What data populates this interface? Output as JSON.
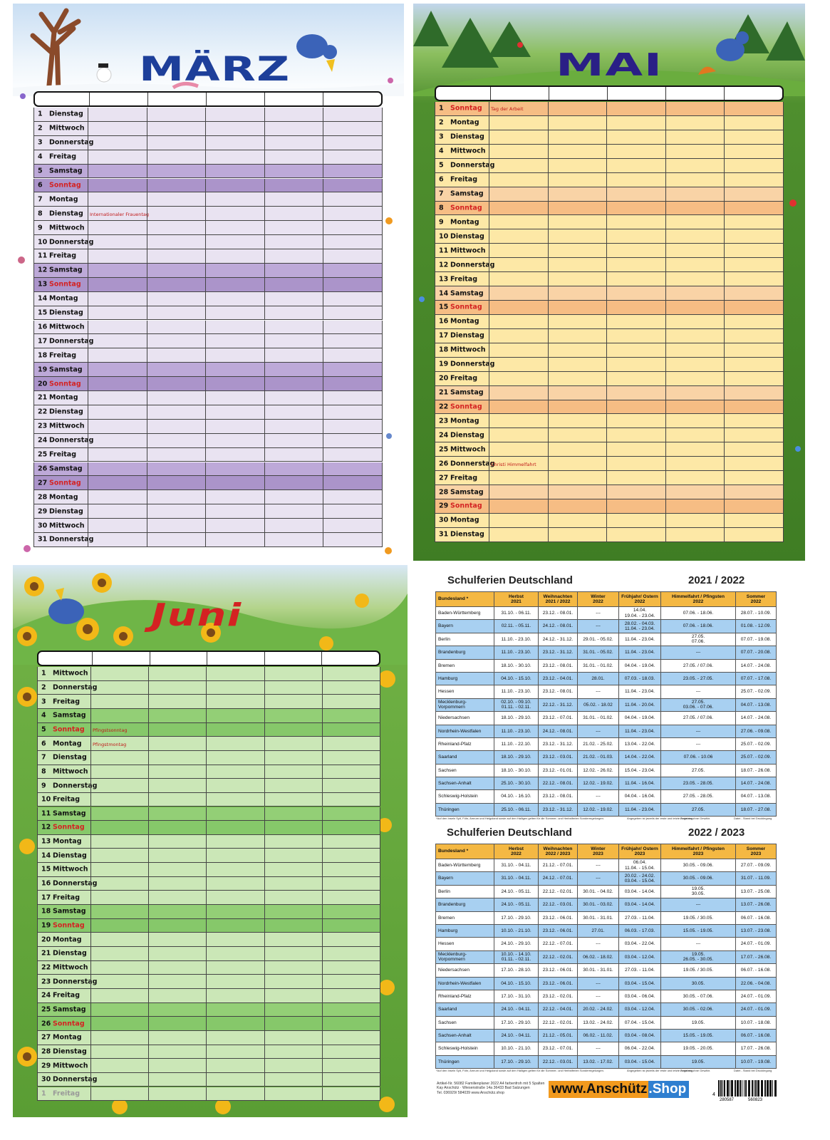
{
  "calendars": [
    {
      "title": "MÄRZ",
      "days": [
        {
          "n": 1,
          "d": "Dienstag"
        },
        {
          "n": 2,
          "d": "Mittwoch"
        },
        {
          "n": 3,
          "d": "Donnerstag"
        },
        {
          "n": 4,
          "d": "Freitag"
        },
        {
          "n": 5,
          "d": "Samstag"
        },
        {
          "n": 6,
          "d": "Sonntag"
        },
        {
          "n": 7,
          "d": "Montag"
        },
        {
          "n": 8,
          "d": "Dienstag",
          "note": "Internationaler Frauentag"
        },
        {
          "n": 9,
          "d": "Mittwoch"
        },
        {
          "n": 10,
          "d": "Donnerstag"
        },
        {
          "n": 11,
          "d": "Freitag"
        },
        {
          "n": 12,
          "d": "Samstag"
        },
        {
          "n": 13,
          "d": "Sonntag"
        },
        {
          "n": 14,
          "d": "Montag"
        },
        {
          "n": 15,
          "d": "Dienstag"
        },
        {
          "n": 16,
          "d": "Mittwoch"
        },
        {
          "n": 17,
          "d": "Donnerstag"
        },
        {
          "n": 18,
          "d": "Freitag"
        },
        {
          "n": 19,
          "d": "Samstag"
        },
        {
          "n": 20,
          "d": "Sonntag"
        },
        {
          "n": 21,
          "d": "Montag"
        },
        {
          "n": 22,
          "d": "Dienstag"
        },
        {
          "n": 23,
          "d": "Mittwoch"
        },
        {
          "n": 24,
          "d": "Donnerstag"
        },
        {
          "n": 25,
          "d": "Freitag"
        },
        {
          "n": 26,
          "d": "Samstag"
        },
        {
          "n": 27,
          "d": "Sonntag"
        },
        {
          "n": 28,
          "d": "Montag"
        },
        {
          "n": 29,
          "d": "Dienstag"
        },
        {
          "n": 30,
          "d": "Mittwoch"
        },
        {
          "n": 31,
          "d": "Donnerstag"
        }
      ]
    },
    {
      "title": "MAI",
      "days": [
        {
          "n": 1,
          "d": "Sonntag",
          "note": "Tag der Arbeit"
        },
        {
          "n": 2,
          "d": "Montag"
        },
        {
          "n": 3,
          "d": "Dienstag"
        },
        {
          "n": 4,
          "d": "Mittwoch"
        },
        {
          "n": 5,
          "d": "Donnerstag"
        },
        {
          "n": 6,
          "d": "Freitag"
        },
        {
          "n": 7,
          "d": "Samstag"
        },
        {
          "n": 8,
          "d": "Sonntag"
        },
        {
          "n": 9,
          "d": "Montag"
        },
        {
          "n": 10,
          "d": "Dienstag"
        },
        {
          "n": 11,
          "d": "Mittwoch"
        },
        {
          "n": 12,
          "d": "Donnerstag"
        },
        {
          "n": 13,
          "d": "Freitag"
        },
        {
          "n": 14,
          "d": "Samstag"
        },
        {
          "n": 15,
          "d": "Sonntag"
        },
        {
          "n": 16,
          "d": "Montag"
        },
        {
          "n": 17,
          "d": "Dienstag"
        },
        {
          "n": 18,
          "d": "Mittwoch"
        },
        {
          "n": 19,
          "d": "Donnerstag"
        },
        {
          "n": 20,
          "d": "Freitag"
        },
        {
          "n": 21,
          "d": "Samstag"
        },
        {
          "n": 22,
          "d": "Sonntag"
        },
        {
          "n": 23,
          "d": "Montag"
        },
        {
          "n": 24,
          "d": "Dienstag"
        },
        {
          "n": 25,
          "d": "Mittwoch"
        },
        {
          "n": 26,
          "d": "Donnerstag",
          "note": "Christi Himmelfahrt"
        },
        {
          "n": 27,
          "d": "Freitag"
        },
        {
          "n": 28,
          "d": "Samstag"
        },
        {
          "n": 29,
          "d": "Sonntag"
        },
        {
          "n": 30,
          "d": "Montag"
        },
        {
          "n": 31,
          "d": "Dienstag"
        }
      ]
    },
    {
      "title": "Juni",
      "days": [
        {
          "n": 1,
          "d": "Mittwoch"
        },
        {
          "n": 2,
          "d": "Donnerstag"
        },
        {
          "n": 3,
          "d": "Freitag"
        },
        {
          "n": 4,
          "d": "Samstag"
        },
        {
          "n": 5,
          "d": "Sonntag",
          "note": "Pfingstsonntag"
        },
        {
          "n": 6,
          "d": "Montag",
          "note": "Pfingstmontag"
        },
        {
          "n": 7,
          "d": "Dienstag"
        },
        {
          "n": 8,
          "d": "Mittwoch"
        },
        {
          "n": 9,
          "d": "Donnerstag"
        },
        {
          "n": 10,
          "d": "Freitag"
        },
        {
          "n": 11,
          "d": "Samstag"
        },
        {
          "n": 12,
          "d": "Sonntag"
        },
        {
          "n": 13,
          "d": "Montag"
        },
        {
          "n": 14,
          "d": "Dienstag"
        },
        {
          "n": 15,
          "d": "Mittwoch"
        },
        {
          "n": 16,
          "d": "Donnerstag"
        },
        {
          "n": 17,
          "d": "Freitag"
        },
        {
          "n": 18,
          "d": "Samstag"
        },
        {
          "n": 19,
          "d": "Sonntag"
        },
        {
          "n": 20,
          "d": "Montag"
        },
        {
          "n": 21,
          "d": "Dienstag"
        },
        {
          "n": 22,
          "d": "Mittwoch"
        },
        {
          "n": 23,
          "d": "Donnerstag"
        },
        {
          "n": 24,
          "d": "Freitag"
        },
        {
          "n": 25,
          "d": "Samstag"
        },
        {
          "n": 26,
          "d": "Sonntag"
        },
        {
          "n": 27,
          "d": "Montag"
        },
        {
          "n": 28,
          "d": "Dienstag"
        },
        {
          "n": 29,
          "d": "Mittwoch"
        },
        {
          "n": 30,
          "d": "Donnerstag"
        }
      ],
      "next": {
        "n": 1,
        "d": "Freitag"
      }
    }
  ],
  "schulferien": [
    {
      "title": "Schulferien Deutschland",
      "years": "2021 / 2022",
      "header": [
        "Bundesland *",
        "Herbst\n2021",
        "Weihnachten\n2021 / 2022",
        "Winter\n2022",
        "Frühjahr/ Ostern\n2022",
        "Himmelfahrt / Pfingsten\n2022",
        "Sommer\n2022"
      ],
      "rows": [
        [
          "Baden-Württemberg",
          "31.10. - 06.11.",
          "23.12. - 08.01.",
          "---",
          "14.04.\n19.04. - 23.04.",
          "07.06. - 18.06.",
          "28.07. - 10.09."
        ],
        [
          "Bayern",
          "02.11. - 05.11.",
          "24.12. - 08.01.",
          "---",
          "28.02. - 04.03.\n11.04. - 23.04.",
          "07.06. - 18.06.",
          "01.08. - 12.09."
        ],
        [
          "Berlin",
          "11.10. - 23.10.",
          "24.12. - 31.12.",
          "29.01. - 05.02.",
          "11.04. - 23.04.",
          "27.05.\n07.06.",
          "07.07. - 19.08."
        ],
        [
          "Brandenburg",
          "11.10. - 23.10.",
          "23.12. - 31.12.",
          "31.01. - 05.02.",
          "11.04. - 23.04.",
          "---",
          "07.07. - 20.08."
        ],
        [
          "Bremen",
          "18.10. - 30.10.",
          "23.12. - 08.01.",
          "31.01. - 01.02.",
          "04.04. - 19.04.",
          "27.05. / 07.06.",
          "14.07. - 24.08."
        ],
        [
          "Hamburg",
          "04.10. - 15.10.",
          "23.12. - 04.01.",
          "28.01.",
          "07.03. - 18.03.",
          "23.05. - 27.05.",
          "07.07. - 17.08."
        ],
        [
          "Hessen",
          "11.10. - 23.10.",
          "23.12. - 08.01.",
          "---",
          "11.04. - 23.04.",
          "---",
          "25.07. - 02.09."
        ],
        [
          "Mecklenburg-Vorpommern",
          "02.10. - 09.10.\n01.11. - 02.11.",
          "22.12. - 31.12.",
          "05.02. - 18.02",
          "11.04. - 20.04.",
          "27.05.\n03.06. - 07.06.",
          "04.07. - 13.08."
        ],
        [
          "Niedersachsen",
          "18.10. - 29.10.",
          "23.12. - 07.01.",
          "31.01. - 01.02.",
          "04.04. - 19.04.",
          "27.05. / 07.06.",
          "14.07. - 24.08."
        ],
        [
          "Nordrhein-Westfalen",
          "11.10. - 23.10.",
          "24.12. - 08.01.",
          "---",
          "11.04. - 23.04.",
          "---",
          "27.06. - 09.08."
        ],
        [
          "Rheinland-Pfalz",
          "11.10. - 22.10.",
          "23.12. - 31.12.",
          "21.02. - 25.02.",
          "13.04. - 22.04.",
          "---",
          "25.07. - 02.09."
        ],
        [
          "Saarland",
          "18.10. - 29.10.",
          "23.12. - 03.01.",
          "21.02. - 01.03.",
          "14.04. - 22.04.",
          "07.06. - 10.06",
          "25.07. - 02.09."
        ],
        [
          "Sachsen",
          "18.10. - 30.10.",
          "23.12. - 01.01.",
          "12.02. - 26.02.",
          "15.04. - 23.04.",
          "27.05.",
          "18.07. - 26.08."
        ],
        [
          "Sachsen-Anhalt",
          "25.10. - 30.10.",
          "22.12. - 08.01.",
          "12.02. - 19.02.",
          "11.04. - 16.04.",
          "23.05. - 28.05.",
          "14.07. - 24.08."
        ],
        [
          "Schleswig-Holstein",
          "04.10. - 16.10.",
          "23.12. - 08.01.",
          "---",
          "04.04. - 16.04.",
          "27.05. - 28.05.",
          "04.07. - 13.08."
        ],
        [
          "Thüringen",
          "25.10. - 06.11.",
          "23.12. - 31.12.",
          "12.02. - 19.02.",
          "11.04. - 23.04.",
          "27.05.",
          "18.07. - 27.08."
        ]
      ],
      "footnotes": [
        "*Auf den Inseln Sylt, Föhr, Amrum und Helgoland sowie auf den Halligen gelten für die Sommer- und Herbstferien Sonderregelungen.",
        "Angegeben ist jeweils der erste und letzte Ferientag.",
        "Angaben ohne Gewähr.",
        "Datei - Stand bei Drucklegung"
      ]
    },
    {
      "title": "Schulferien Deutschland",
      "years": "2022 / 2023",
      "header": [
        "Bundesland *",
        "Herbst\n2022",
        "Weihnachten\n2022 / 2023",
        "Winter\n2023",
        "Frühjahr/ Ostern\n2023",
        "Himmelfahrt / Pfingsten\n2023",
        "Sommer\n2023"
      ],
      "rows": [
        [
          "Baden-Württemberg",
          "31.10. - 04.11.",
          "21.12. - 07.01.",
          "---",
          "06.04.\n11.04. - 15.04.",
          "30.05. - 09.06.",
          "27.07. - 09.09."
        ],
        [
          "Bayern",
          "31.10. - 04.11.",
          "24.12. - 07.01.",
          "---",
          "20.02. - 24.02.\n03.04. - 15.04.",
          "30.05. - 09.06.",
          "31.07. - 11.09."
        ],
        [
          "Berlin",
          "24.10. - 05.11.",
          "22.12. - 02.01.",
          "30.01. - 04.02.",
          "03.04. - 14.04.",
          "19.05.\n30.05.",
          "13.07. - 25.08."
        ],
        [
          "Brandenburg",
          "24.10. - 05.11.",
          "22.12. - 03.01.",
          "30.01. - 03.02.",
          "03.04. - 14.04.",
          "---",
          "13.07. - 26.08."
        ],
        [
          "Bremen",
          "17.10. - 29.10.",
          "23.12. - 06.01.",
          "30.01. - 31.01.",
          "27.03. - 11.04.",
          "19.05. / 30.05.",
          "06.07. - 16.08."
        ],
        [
          "Hamburg",
          "10.10. - 21.10.",
          "23.12. - 06.01.",
          "27.01.",
          "06.03. - 17.03.",
          "15.05. - 19.05.",
          "13.07. - 23.08."
        ],
        [
          "Hessen",
          "24.10. - 29.10.",
          "22.12. - 07.01.",
          "---",
          "03.04. - 22.04.",
          "---",
          "24.07. - 01.09."
        ],
        [
          "Mecklenburg-Vorpommern",
          "10.10. - 14.10.\n01.11. - 02.11.",
          "22.12. - 02.01.",
          "06.02. - 18.02.",
          "03.04. - 12.04.",
          "19.05.\n26.05. - 30.05.",
          "17.07. - 26.08."
        ],
        [
          "Niedersachsen",
          "17.10. - 28.10.",
          "23.12. - 06.01.",
          "30.01. - 31.01.",
          "27.03. - 11.04.",
          "19.05. / 30.05.",
          "06.07. - 16.08."
        ],
        [
          "Nordrhein-Westfalen",
          "04.10. - 15.10.",
          "23.12. - 06.01.",
          "---",
          "03.04. - 15.04.",
          "30.05.",
          "22.06. - 04.08."
        ],
        [
          "Rheinland-Pfalz",
          "17.10. - 31.10.",
          "23.12. - 02.01.",
          "---",
          "03.04. - 06.04.",
          "30.05. - 07.06.",
          "24.07. - 01.09."
        ],
        [
          "Saarland",
          "24.10. - 04.11.",
          "22.12. - 04.01.",
          "20.02. - 24.02.",
          "03.04. - 12.04.",
          "30.05. - 02.06.",
          "24.07. - 01.09."
        ],
        [
          "Sachsen",
          "17.10. - 29.10.",
          "22.12. - 02.01.",
          "13.02. - 24.02.",
          "07.04. - 15.04.",
          "19.05.",
          "10.07. - 18.08."
        ],
        [
          "Sachsen-Anhalt",
          "24.10. - 04.11.",
          "21.12. - 05.01.",
          "06.02. - 11.02.",
          "03.04. - 08.04.",
          "15.05. - 19.05.",
          "06.07. - 16.08."
        ],
        [
          "Schleswig-Holstein",
          "10.10. - 21.10.",
          "23.12. - 07.01.",
          "---",
          "06.04. - 22.04.",
          "19.05. - 20.05.",
          "17.07. - 26.08."
        ],
        [
          "Thüringen",
          "17.10. - 29.10.",
          "22.12. - 03.01.",
          "13.02. - 17.02.",
          "03.04. - 15.04.",
          "19.05.",
          "10.07. - 19.08."
        ]
      ],
      "footnotes": [
        "*Auf den Inseln Sylt, Föhr, Amrum und Helgoland sowie auf den Halligen gelten für die Sommer- und Herbstferien Sonderregelungen.",
        "Angegeben ist jeweils der erste und letzte Ferientag.",
        "Angaben ohne Gewähr.",
        "Datei - Stand bei Drucklegung"
      ]
    }
  ],
  "footer": {
    "lines": [
      "Artikel-Nr. 56082 Familienplaner 2022 A4 farbenfroh mit 5 Spalten",
      "Kay Anschütz · Wiesenstraße 14a 36433 Bad Salzungen",
      "Tel. 036929/ 584039   www.Anschütz.shop"
    ],
    "logo": [
      "www.Anschütz",
      ".Shop"
    ],
    "barcode": [
      "4",
      "280587",
      "560823"
    ]
  }
}
